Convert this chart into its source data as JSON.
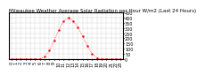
{
  "title": "Milwaukee Weather Average Solar Radiation per Hour W/m2 (Last 24 Hours)",
  "hours": [
    0,
    1,
    2,
    3,
    4,
    5,
    6,
    7,
    8,
    9,
    10,
    11,
    12,
    13,
    14,
    15,
    16,
    17,
    18,
    19,
    20,
    21,
    22,
    23
  ],
  "values": [
    0,
    0,
    0,
    0,
    0,
    0,
    0,
    20,
    80,
    180,
    280,
    370,
    400,
    370,
    310,
    220,
    130,
    50,
    10,
    0,
    0,
    0,
    0,
    0
  ],
  "line_color": "#ff0000",
  "bg_color": "#ffffff",
  "grid_color": "#aaaaaa",
  "ylim": [
    0,
    450
  ],
  "yticks": [
    0,
    50,
    100,
    150,
    200,
    250,
    300,
    350,
    400,
    450
  ],
  "ylabel_fontsize": 4,
  "xlabel_fontsize": 3.5,
  "title_fontsize": 4.0
}
